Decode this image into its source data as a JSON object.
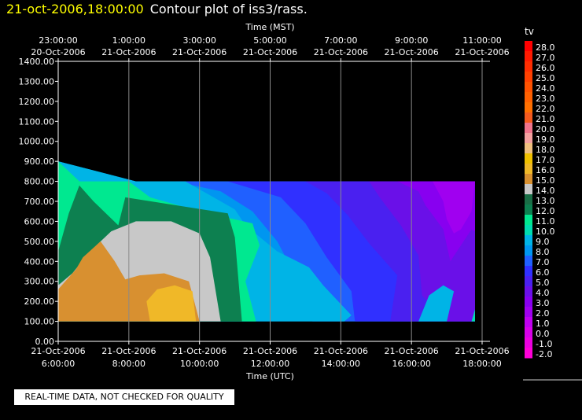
{
  "header": {
    "timestamp": "21-oct-2006,18:00:00",
    "title": "Contour plot of iss3/rass."
  },
  "notice": "REAL-TIME DATA, NOT CHECKED FOR QUALITY",
  "chart_data": {
    "type": "heatmap",
    "title": "Contour plot of iss3/rass.",
    "top_axis": {
      "label": "Time (MST)",
      "ticks": [
        {
          "time": "23:00:00",
          "date": "20-Oct-2006"
        },
        {
          "time": "1:00:00",
          "date": "21-Oct-2006"
        },
        {
          "time": "3:00:00",
          "date": "21-Oct-2006"
        },
        {
          "time": "5:00:00",
          "date": "21-Oct-2006"
        },
        {
          "time": "7:00:00",
          "date": "21-Oct-2006"
        },
        {
          "time": "9:00:00",
          "date": "21-Oct-2006"
        },
        {
          "time": "11:00:00",
          "date": "21-Oct-2006"
        }
      ]
    },
    "x_axis": {
      "label": "Time (UTC)",
      "ticks": [
        {
          "date": "21-Oct-2006",
          "time": "6:00:00"
        },
        {
          "date": "21-Oct-2006",
          "time": "8:00:00"
        },
        {
          "date": "21-Oct-2006",
          "time": "10:00:00"
        },
        {
          "date": "21-Oct-2006",
          "time": "12:00:00"
        },
        {
          "date": "21-Oct-2006",
          "time": "14:00:00"
        },
        {
          "date": "21-Oct-2006",
          "time": "16:00:00"
        },
        {
          "date": "21-Oct-2006",
          "time": "18:00:00"
        }
      ],
      "range_hours_utc": [
        6,
        18
      ]
    },
    "y_axis": {
      "ticks": [
        "0.00",
        "100.00",
        "200.00",
        "300.00",
        "400.00",
        "500.00",
        "600.00",
        "700.00",
        "800.00",
        "900.00",
        "1000.00",
        "1100.00",
        "1200.00",
        "1300.00",
        "1400.00"
      ],
      "range": [
        0,
        1400
      ]
    },
    "grid": "vertical lines at x ticks",
    "colorbar": {
      "label": "tv",
      "levels": [
        {
          "v": "28.0",
          "c": "#ff0000"
        },
        {
          "v": "27.0",
          "c": "#ff1a00"
        },
        {
          "v": "26.0",
          "c": "#ff2d00"
        },
        {
          "v": "25.0",
          "c": "#ff4000"
        },
        {
          "v": "24.0",
          "c": "#ff5200"
        },
        {
          "v": "23.0",
          "c": "#ff6000"
        },
        {
          "v": "22.0",
          "c": "#ff6f00"
        },
        {
          "v": "21.0",
          "c": "#f45a1e"
        },
        {
          "v": "20.0",
          "c": "#f0748c"
        },
        {
          "v": "19.0",
          "c": "#f4a0a0"
        },
        {
          "v": "18.0",
          "c": "#f0c080"
        },
        {
          "v": "17.0",
          "c": "#f0c000"
        },
        {
          "v": "16.0",
          "c": "#f0b828"
        },
        {
          "v": "15.0",
          "c": "#d89030"
        },
        {
          "v": "14.0",
          "c": "#c8c8c8"
        },
        {
          "v": "13.0",
          "c": "#1a6e46"
        },
        {
          "v": "12.0",
          "c": "#0d8050"
        },
        {
          "v": "11.0",
          "c": "#00e890"
        },
        {
          "v": "10.0",
          "c": "#00dcb0"
        },
        {
          "v": "9.0",
          "c": "#00b4e6"
        },
        {
          "v": "8.0",
          "c": "#0096f0"
        },
        {
          "v": "7.0",
          "c": "#2060ff"
        },
        {
          "v": "6.0",
          "c": "#3030ff"
        },
        {
          "v": "5.0",
          "c": "#4a20f0"
        },
        {
          "v": "4.0",
          "c": "#6a10e8"
        },
        {
          "v": "3.0",
          "c": "#8800f0"
        },
        {
          "v": "2.0",
          "c": "#a000f0"
        },
        {
          "v": "1.0",
          "c": "#c000f0"
        },
        {
          "v": "0.0",
          "c": "#d800e8"
        },
        {
          "v": "-1.0",
          "c": "#ec00e0"
        },
        {
          "v": "-2.0",
          "c": "#ff00d8"
        }
      ]
    },
    "contours": [
      {
        "level": "9.0",
        "color": "#0096f0",
        "pts": [
          [
            6,
            900
          ],
          [
            8.2,
            800
          ],
          [
            17.8,
            800
          ],
          [
            17.8,
            100
          ],
          [
            6,
            100
          ]
        ]
      },
      {
        "level": "8.0",
        "color": "#2060ff",
        "pts": [
          [
            9.3,
            800
          ],
          [
            17.8,
            800
          ],
          [
            17.8,
            120
          ],
          [
            16.2,
            100
          ],
          [
            13.2,
            100
          ],
          [
            12.8,
            300
          ],
          [
            12.2,
            500
          ],
          [
            11.5,
            650
          ],
          [
            10.6,
            750
          ]
        ]
      },
      {
        "level": "7.0",
        "color": "#3030ff",
        "pts": [
          [
            10.8,
            800
          ],
          [
            17.8,
            800
          ],
          [
            17.8,
            100
          ],
          [
            14.4,
            100
          ],
          [
            14.3,
            250
          ],
          [
            13.6,
            420
          ],
          [
            13,
            590
          ],
          [
            12.3,
            720
          ]
        ]
      },
      {
        "level": "6.0",
        "color": "#4a20f0",
        "pts": [
          [
            13,
            800
          ],
          [
            17.8,
            800
          ],
          [
            17.8,
            100
          ],
          [
            16.2,
            100
          ],
          [
            15.4,
            100
          ],
          [
            15.6,
            330
          ],
          [
            14.8,
            490
          ],
          [
            14.2,
            630
          ],
          [
            13.6,
            740
          ]
        ]
      },
      {
        "level": "5.0",
        "color": "#6a10e8",
        "pts": [
          [
            14.8,
            800
          ],
          [
            17.8,
            800
          ],
          [
            17.8,
            100
          ],
          [
            17,
            100
          ],
          [
            16.3,
            230
          ],
          [
            16.2,
            430
          ],
          [
            15.7,
            580
          ],
          [
            15.1,
            720
          ]
        ]
      },
      {
        "level": "3.0",
        "color": "#8800f0",
        "pts": [
          [
            15.6,
            800
          ],
          [
            17.8,
            800
          ],
          [
            17.8,
            550
          ],
          [
            17.7,
            560
          ],
          [
            17.1,
            400
          ],
          [
            16.9,
            560
          ],
          [
            16.4,
            680
          ],
          [
            16.2,
            750
          ]
        ]
      },
      {
        "level": "2.0",
        "color": "#a000f0",
        "pts": [
          [
            16.6,
            800
          ],
          [
            17.8,
            800
          ],
          [
            17.7,
            650
          ],
          [
            17.4,
            560
          ],
          [
            17.2,
            540
          ],
          [
            17.0,
            610
          ],
          [
            16.9,
            700
          ]
        ]
      },
      {
        "level": "9.0b",
        "color": "#00b4e6",
        "pts": [
          [
            16.2,
            100
          ],
          [
            17.0,
            100
          ],
          [
            17.2,
            250
          ],
          [
            16.9,
            280
          ],
          [
            16.5,
            230
          ]
        ]
      },
      {
        "level": "10.0b",
        "color": "#00dcb0",
        "pts": [
          [
            17.7,
            100
          ],
          [
            17.8,
            100
          ],
          [
            17.8,
            160
          ]
        ]
      },
      {
        "level": "9.5",
        "color": "#00b4e6",
        "pts": [
          [
            6,
            900
          ],
          [
            8.2,
            800
          ],
          [
            9.6,
            800
          ],
          [
            10.2,
            740
          ],
          [
            11,
            660
          ],
          [
            11.3,
            580
          ],
          [
            12.2,
            450
          ],
          [
            13.1,
            370
          ],
          [
            13.5,
            280
          ],
          [
            14.3,
            130
          ],
          [
            14.1,
            100
          ],
          [
            6,
            100
          ]
        ]
      },
      {
        "level": "11.0",
        "color": "#00e890",
        "pts": [
          [
            6,
            900
          ],
          [
            6.6,
            800
          ],
          [
            8.0,
            800
          ],
          [
            8.6,
            720
          ],
          [
            10,
            650
          ],
          [
            11.5,
            590
          ],
          [
            11.7,
            480
          ],
          [
            11.3,
            300
          ],
          [
            11.6,
            100
          ],
          [
            6,
            100
          ]
        ]
      },
      {
        "level": "12.0",
        "color": "#0d8050",
        "pts": [
          [
            6,
            450
          ],
          [
            6.3,
            640
          ],
          [
            6.6,
            780
          ],
          [
            7.0,
            700
          ],
          [
            7.7,
            580
          ],
          [
            7.9,
            720
          ],
          [
            10.8,
            640
          ],
          [
            11.0,
            520
          ],
          [
            11.2,
            100
          ],
          [
            6,
            100
          ]
        ]
      },
      {
        "level": "14.0",
        "color": "#c8c8c8",
        "pts": [
          [
            6,
            280
          ],
          [
            6.4,
            340
          ],
          [
            6.9,
            450
          ],
          [
            7.5,
            550
          ],
          [
            8.2,
            600
          ],
          [
            9.2,
            600
          ],
          [
            10,
            540
          ],
          [
            10.3,
            420
          ],
          [
            10.6,
            100
          ],
          [
            6,
            100
          ]
        ]
      },
      {
        "level": "15.0",
        "color": "#d89030",
        "pts": [
          [
            6,
            100
          ],
          [
            6,
            260
          ],
          [
            6.5,
            360
          ],
          [
            6.7,
            420
          ],
          [
            7.2,
            500
          ],
          [
            7.6,
            400
          ],
          [
            7.9,
            310
          ],
          [
            8.3,
            330
          ],
          [
            9,
            340
          ],
          [
            9.7,
            300
          ],
          [
            10.0,
            100
          ]
        ]
      },
      {
        "level": "16.0",
        "color": "#f0b828",
        "pts": [
          [
            8.6,
            100
          ],
          [
            8.5,
            200
          ],
          [
            8.8,
            260
          ],
          [
            9.3,
            280
          ],
          [
            9.8,
            250
          ],
          [
            9.9,
            100
          ]
        ]
      }
    ]
  }
}
